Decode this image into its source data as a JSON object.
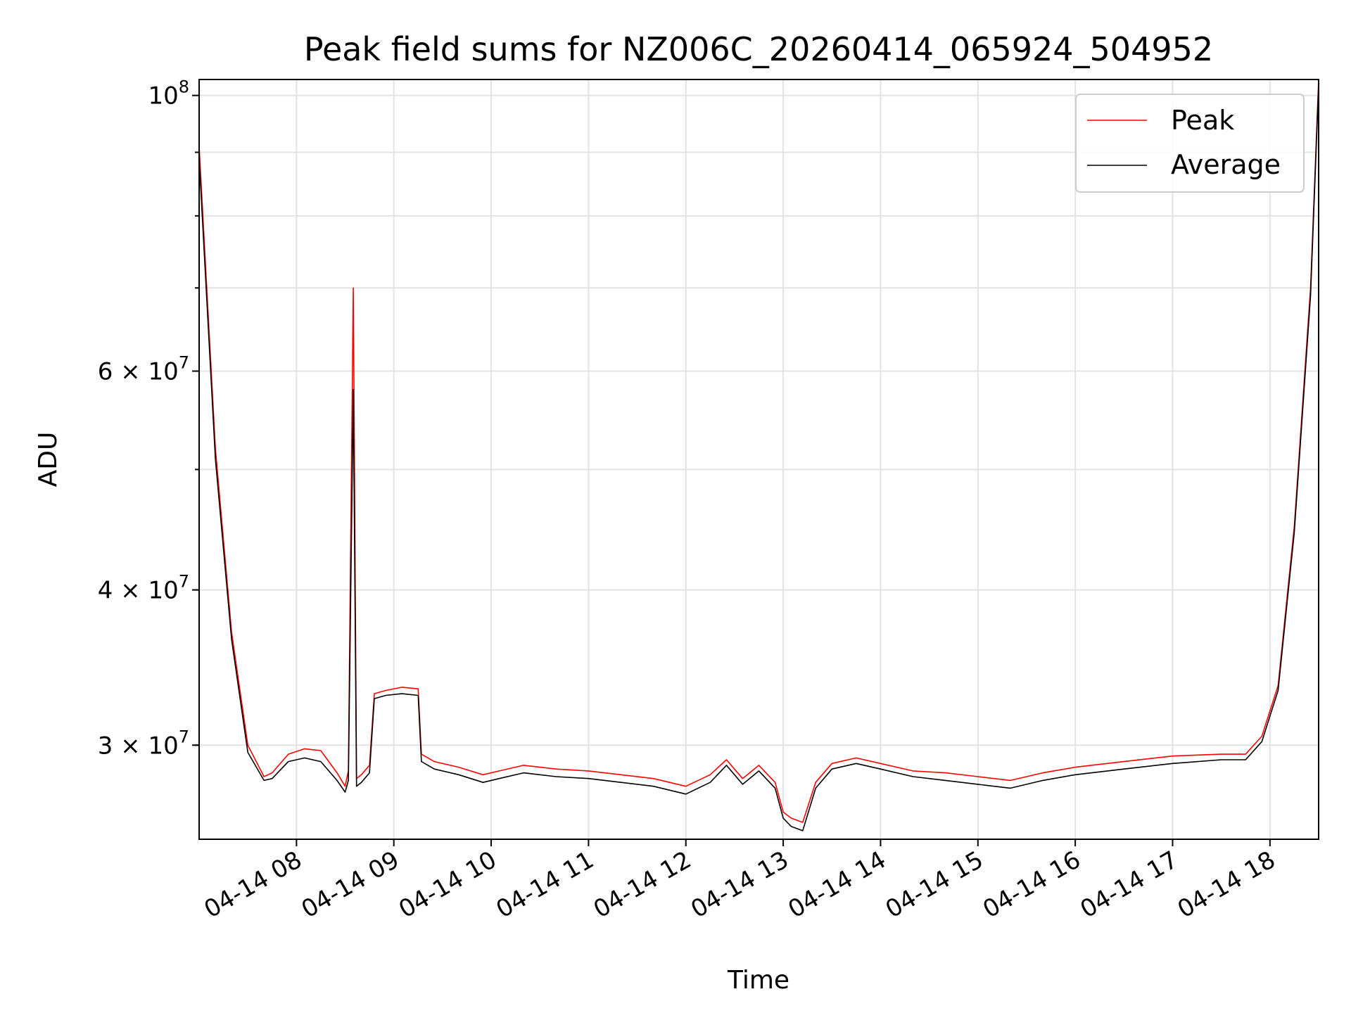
{
  "chart_data": {
    "type": "line",
    "title": "Peak field sums for NZ006C_20260414_065924_504952",
    "xlabel": "Time",
    "ylabel": "ADU",
    "yscale": "log",
    "ylim": [
      25200000,
      103000000
    ],
    "xlim": [
      "04-14 07:00",
      "04-14 18:30"
    ],
    "grid": true,
    "legend_position": "top-right",
    "x_ticks": [
      "04-14 08",
      "04-14 09",
      "04-14 10",
      "04-14 11",
      "04-14 12",
      "04-14 13",
      "04-14 14",
      "04-14 15",
      "04-14 16",
      "04-14 17",
      "04-14 18"
    ],
    "y_ticks": [
      {
        "value": 100000000,
        "base": "10",
        "exp": "8"
      },
      {
        "value": 60000000,
        "base": "6 × 10",
        "exp": "7"
      },
      {
        "value": 40000000,
        "base": "4 × 10",
        "exp": "7"
      },
      {
        "value": 30000000,
        "base": "3 × 10",
        "exp": "7"
      }
    ],
    "series": [
      {
        "name": "Peak",
        "color": "#ff0000",
        "x": [
          "07:00",
          "07:10",
          "07:20",
          "07:30",
          "07:40",
          "07:45",
          "07:55",
          "08:05",
          "08:15",
          "08:25",
          "08:30",
          "08:32",
          "08:35",
          "08:37",
          "08:40",
          "08:45",
          "08:48",
          "08:55",
          "09:05",
          "09:15",
          "09:17",
          "09:25",
          "09:40",
          "09:55",
          "10:05",
          "10:20",
          "10:40",
          "11:00",
          "11:20",
          "11:40",
          "12:00",
          "12:15",
          "12:25",
          "12:35",
          "12:45",
          "12:55",
          "13:00",
          "13:05",
          "13:12",
          "13:20",
          "13:30",
          "13:45",
          "14:00",
          "14:20",
          "14:40",
          "15:00",
          "15:20",
          "15:40",
          "16:00",
          "16:30",
          "17:00",
          "17:30",
          "17:45",
          "17:55",
          "18:05",
          "18:15",
          "18:25",
          "18:30"
        ],
        "y": [
          91000000,
          52000000,
          37000000,
          30000000,
          28300000,
          28500000,
          29500000,
          29800000,
          29700000,
          28500000,
          27800000,
          28600000,
          70000000,
          28200000,
          28400000,
          28900000,
          33000000,
          33200000,
          33400000,
          33300000,
          29500000,
          29100000,
          28800000,
          28400000,
          28600000,
          28900000,
          28700000,
          28600000,
          28400000,
          28200000,
          27800000,
          28400000,
          29200000,
          28200000,
          28900000,
          28000000,
          26500000,
          26200000,
          26000000,
          28000000,
          29000000,
          29300000,
          29000000,
          28600000,
          28500000,
          28300000,
          28100000,
          28500000,
          28800000,
          29100000,
          29400000,
          29500000,
          29500000,
          30500000,
          33500000,
          45000000,
          70000000,
          103000000
        ]
      },
      {
        "name": "Average",
        "color": "#000000",
        "x": [
          "07:00",
          "07:10",
          "07:20",
          "07:30",
          "07:40",
          "07:45",
          "07:55",
          "08:05",
          "08:15",
          "08:25",
          "08:30",
          "08:32",
          "08:35",
          "08:37",
          "08:40",
          "08:45",
          "08:48",
          "08:55",
          "09:05",
          "09:15",
          "09:17",
          "09:25",
          "09:40",
          "09:55",
          "10:05",
          "10:20",
          "10:40",
          "11:00",
          "11:20",
          "11:40",
          "12:00",
          "12:15",
          "12:25",
          "12:35",
          "12:45",
          "12:55",
          "13:00",
          "13:05",
          "13:12",
          "13:20",
          "13:30",
          "13:45",
          "14:00",
          "14:20",
          "14:40",
          "15:00",
          "15:20",
          "15:40",
          "16:00",
          "16:30",
          "17:00",
          "17:30",
          "17:45",
          "17:55",
          "18:05",
          "18:15",
          "18:25",
          "18:30"
        ],
        "y": [
          89000000,
          51000000,
          36500000,
          29600000,
          28100000,
          28200000,
          29100000,
          29300000,
          29100000,
          28100000,
          27500000,
          28100000,
          58000000,
          27800000,
          28000000,
          28500000,
          32700000,
          32900000,
          33000000,
          32900000,
          29100000,
          28700000,
          28400000,
          28000000,
          28200000,
          28500000,
          28300000,
          28200000,
          28000000,
          27800000,
          27400000,
          28000000,
          28900000,
          27900000,
          28600000,
          27700000,
          26200000,
          25800000,
          25600000,
          27700000,
          28700000,
          29000000,
          28700000,
          28300000,
          28100000,
          27900000,
          27700000,
          28100000,
          28400000,
          28700000,
          29000000,
          29200000,
          29200000,
          30200000,
          33200000,
          44500000,
          69000000,
          102000000
        ]
      }
    ]
  }
}
